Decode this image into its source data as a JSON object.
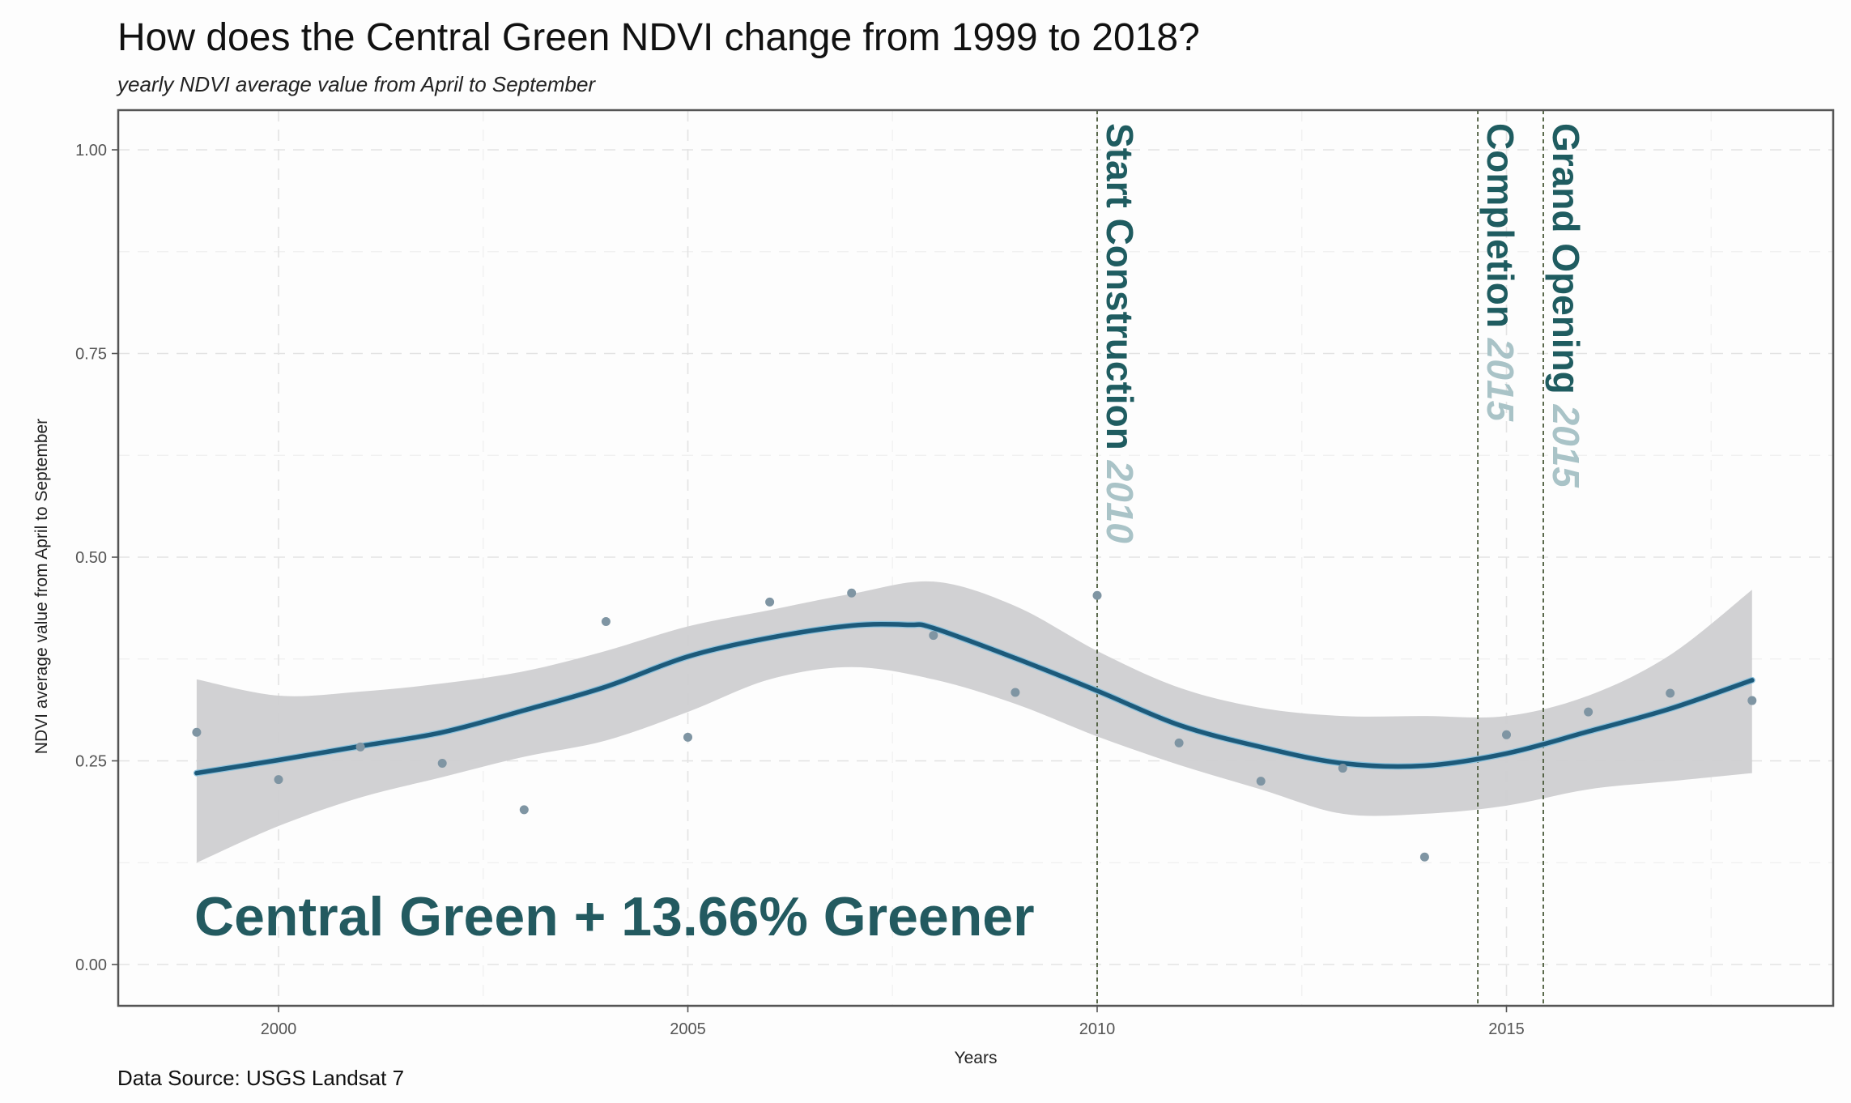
{
  "chart_data": {
    "type": "scatter",
    "title": "How does the Central Green NDVI change from 1999 to 2018?",
    "subtitle": "yearly NDVI average value from April to September",
    "xlabel": "Years",
    "ylabel": "NDVI average value from April to September",
    "caption": "Data Source: USGS Landsat 7",
    "xlim": [
      1998.0,
      2018.9
    ],
    "ylim": [
      -0.05,
      1.05
    ],
    "x_ticks": [
      2000,
      2005,
      2010,
      2015
    ],
    "x_tick_labels": [
      "2000",
      "2005",
      "2010",
      "2015"
    ],
    "y_ticks": [
      0.0,
      0.25,
      0.5,
      0.75,
      1.0
    ],
    "y_tick_labels": [
      "0.00",
      "0.25",
      "0.50",
      "0.75",
      "1.00"
    ],
    "grid": true,
    "legend": "none",
    "series": [
      {
        "name": "NDVI yearly average",
        "kind": "points",
        "x": [
          1999,
          2000,
          2001,
          2002,
          2003,
          2004,
          2005,
          2006,
          2007,
          2008,
          2009,
          2010,
          2011,
          2012,
          2013,
          2014,
          2015,
          2016,
          2017,
          2018
        ],
        "y": [
          0.285,
          0.227,
          0.267,
          0.247,
          0.19,
          0.421,
          0.279,
          0.445,
          0.456,
          0.404,
          0.334,
          0.453,
          0.272,
          0.225,
          0.241,
          0.132,
          0.282,
          0.31,
          0.333,
          0.324
        ]
      },
      {
        "name": "Loess smooth",
        "kind": "line",
        "x": [
          1999,
          2000,
          2001,
          2002,
          2003,
          2004,
          2005,
          2006,
          2007,
          2007.7,
          2008,
          2009,
          2010,
          2011,
          2012,
          2013,
          2014,
          2015,
          2016,
          2017,
          2018
        ],
        "y": [
          0.235,
          0.251,
          0.268,
          0.285,
          0.312,
          0.341,
          0.378,
          0.401,
          0.416,
          0.417,
          0.413,
          0.376,
          0.336,
          0.294,
          0.267,
          0.247,
          0.244,
          0.259,
          0.286,
          0.314,
          0.349
        ]
      },
      {
        "name": "Confidence band",
        "kind": "band",
        "x": [
          1999,
          2000,
          2001,
          2002,
          2003,
          2004,
          2005,
          2006,
          2007,
          2008,
          2009,
          2010,
          2011,
          2012,
          2013,
          2014,
          2015,
          2016,
          2017,
          2018
        ],
        "upper": [
          0.35,
          0.33,
          0.335,
          0.345,
          0.36,
          0.385,
          0.415,
          0.435,
          0.455,
          0.47,
          0.44,
          0.385,
          0.34,
          0.315,
          0.305,
          0.305,
          0.305,
          0.33,
          0.38,
          0.46
        ],
        "lower": [
          0.125,
          0.17,
          0.205,
          0.23,
          0.255,
          0.275,
          0.31,
          0.35,
          0.365,
          0.35,
          0.32,
          0.28,
          0.245,
          0.215,
          0.185,
          0.185,
          0.195,
          0.215,
          0.225,
          0.235
        ]
      }
    ],
    "vlines": [
      {
        "x": 2010,
        "label": "Start Construction",
        "year": "2010"
      },
      {
        "x": 2014.65,
        "label": "Completion",
        "year": "2015"
      },
      {
        "x": 2015.45,
        "label": "Grand Opening",
        "year": "2015"
      }
    ],
    "annotation": "Central Green + 13.66% Greener",
    "colors": {
      "points": "#7f95a3",
      "line": "#1d5a7a",
      "band": "#cfcfd1",
      "vline": "#4a5a3a",
      "annot_main": "#1f5c60",
      "annot_year": "#a9c3c7",
      "grid": "#e6e6e6",
      "panel_border": "#555555"
    }
  }
}
